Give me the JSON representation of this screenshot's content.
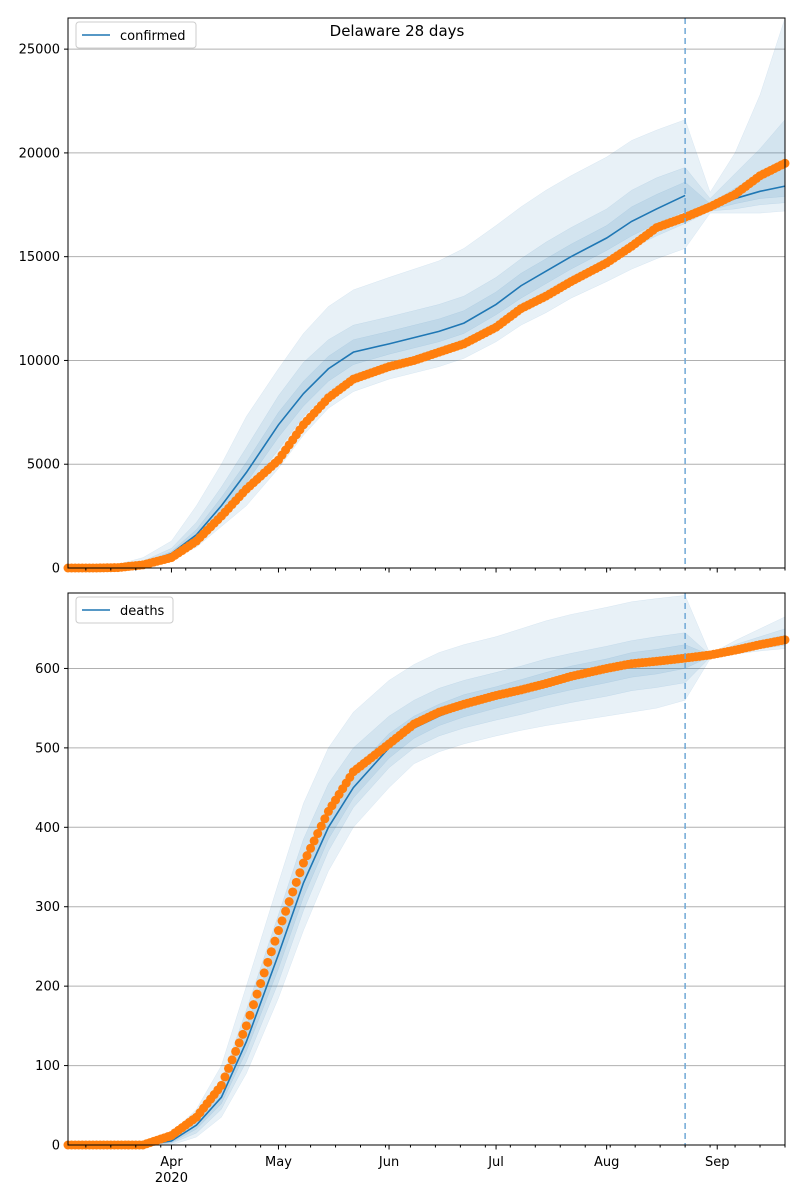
{
  "title": "Delaware 28 days",
  "colors": {
    "model_line": "#1f77b4",
    "observed_points": "#ff7f0e",
    "band": "#1f77b4",
    "forecast_line": "#6fa8d6",
    "grid": "#b0b0b0"
  },
  "chart_data": [
    {
      "type": "line",
      "name": "confirmed-panel",
      "legend": "confirmed",
      "legend_position": "top-left",
      "grid": "y",
      "x_range": [
        "2020-03-03",
        "2020-09-20"
      ],
      "ylim": [
        0,
        26500
      ],
      "yticks": [
        0,
        5000,
        10000,
        15000,
        20000,
        25000
      ],
      "forecast_start": "2020-08-23",
      "model_line": {
        "x": [
          "2020-03-03",
          "2020-03-10",
          "2020-03-17",
          "2020-03-24",
          "2020-04-01",
          "2020-04-08",
          "2020-04-15",
          "2020-04-22",
          "2020-05-01",
          "2020-05-08",
          "2020-05-15",
          "2020-05-22",
          "2020-06-01",
          "2020-06-08",
          "2020-06-15",
          "2020-06-22",
          "2020-07-01",
          "2020-07-08",
          "2020-07-15",
          "2020-07-22",
          "2020-08-01",
          "2020-08-08",
          "2020-08-15",
          "2020-08-23",
          "2020-08-30",
          "2020-09-06",
          "2020-09-13",
          "2020-09-20"
        ],
        "y": [
          0,
          0,
          50,
          200,
          700,
          1600,
          3000,
          4600,
          6900,
          8400,
          9600,
          10400,
          10800,
          11100,
          11400,
          11800,
          12700,
          13600,
          14300,
          15000,
          15900,
          16700,
          17300,
          17950,
          17300,
          17800,
          18150,
          18400
        ]
      },
      "observed": {
        "x": [
          "2020-03-03",
          "2020-03-10",
          "2020-03-17",
          "2020-03-24",
          "2020-04-01",
          "2020-04-08",
          "2020-04-15",
          "2020-04-22",
          "2020-05-01",
          "2020-05-08",
          "2020-05-15",
          "2020-05-22",
          "2020-06-01",
          "2020-06-08",
          "2020-06-15",
          "2020-06-22",
          "2020-07-01",
          "2020-07-08",
          "2020-07-15",
          "2020-07-22",
          "2020-08-01",
          "2020-08-08",
          "2020-08-15",
          "2020-08-23",
          "2020-08-30",
          "2020-09-06",
          "2020-09-13",
          "2020-09-20"
        ],
        "y": [
          0,
          0,
          20,
          150,
          500,
          1300,
          2500,
          3800,
          5200,
          6900,
          8200,
          9100,
          9700,
          10000,
          10400,
          10800,
          11600,
          12500,
          13100,
          13800,
          14700,
          15500,
          16400,
          16900,
          17400,
          18000,
          18900,
          19500
        ]
      },
      "bands": [
        {
          "name": "band-outer",
          "lower": [
            0,
            0,
            0,
            120,
            400,
            1000,
            2000,
            3000,
            4800,
            6400,
            7700,
            8500,
            9100,
            9400,
            9700,
            10100,
            10900,
            11700,
            12300,
            13000,
            13800,
            14400,
            14900,
            15400,
            17100,
            17100,
            17100,
            17200
          ],
          "upper": [
            0,
            20,
            180,
            500,
            1300,
            3000,
            5000,
            7300,
            9600,
            11300,
            12600,
            13400,
            14000,
            14400,
            14800,
            15400,
            16500,
            17400,
            18200,
            18900,
            19800,
            20600,
            21100,
            21600,
            18100,
            20000,
            22800,
            26500
          ]
        },
        {
          "name": "band-mid",
          "lower": [
            0,
            0,
            10,
            160,
            520,
            1200,
            2400,
            3700,
            5700,
            7300,
            8500,
            9300,
            9800,
            10100,
            10400,
            10800,
            11700,
            12500,
            13100,
            13800,
            14700,
            15400,
            16000,
            16600,
            17200,
            17300,
            17500,
            17600
          ],
          "upper": [
            0,
            10,
            100,
            330,
            950,
            2200,
            3900,
            5800,
            8300,
            9900,
            11000,
            11700,
            12100,
            12400,
            12700,
            13100,
            14000,
            14900,
            15700,
            16400,
            17300,
            18200,
            18800,
            19300,
            17800,
            19000,
            20200,
            21600
          ]
        },
        {
          "name": "band-inner",
          "lower": [
            0,
            0,
            30,
            180,
            600,
            1400,
            2700,
            4100,
            6300,
            7800,
            9000,
            9800,
            10300,
            10600,
            10900,
            11300,
            12200,
            13000,
            13700,
            14400,
            15300,
            16000,
            16600,
            17200,
            17250,
            17550,
            17800,
            17900
          ],
          "upper": [
            0,
            5,
            70,
            250,
            800,
            1850,
            3400,
            5100,
            7500,
            9000,
            10200,
            11000,
            11400,
            11700,
            12000,
            12400,
            13300,
            14200,
            14900,
            15600,
            16500,
            17400,
            18000,
            18600,
            17550,
            18300,
            19000,
            19700
          ]
        }
      ],
      "xticks": [
        {
          "date": "2020-04-01",
          "label": "Apr",
          "sublabel": ""
        },
        {
          "date": "2020-05-01",
          "label": "May",
          "sublabel": ""
        },
        {
          "date": "2020-06-01",
          "label": "Jun",
          "sublabel": ""
        },
        {
          "date": "2020-07-01",
          "label": "Jul",
          "sublabel": ""
        },
        {
          "date": "2020-08-01",
          "label": "Aug",
          "sublabel": ""
        },
        {
          "date": "2020-09-01",
          "label": "Sep",
          "sublabel": ""
        }
      ],
      "show_xtick_labels": false
    },
    {
      "type": "line",
      "name": "deaths-panel",
      "legend": "deaths",
      "legend_position": "top-left",
      "grid": "y",
      "x_range": [
        "2020-03-03",
        "2020-09-20"
      ],
      "ylim": [
        0,
        695
      ],
      "yticks": [
        0,
        100,
        200,
        300,
        400,
        500,
        600
      ],
      "forecast_start": "2020-08-23",
      "model_line": {
        "x": [
          "2020-03-03",
          "2020-03-10",
          "2020-03-17",
          "2020-03-24",
          "2020-04-01",
          "2020-04-08",
          "2020-04-15",
          "2020-04-22",
          "2020-05-01",
          "2020-05-08",
          "2020-05-15",
          "2020-05-22",
          "2020-06-01",
          "2020-06-08",
          "2020-06-15",
          "2020-06-22",
          "2020-07-01",
          "2020-07-08",
          "2020-07-15",
          "2020-07-22",
          "2020-08-01",
          "2020-08-08",
          "2020-08-15",
          "2020-08-23",
          "2020-08-30",
          "2020-09-06",
          "2020-09-13",
          "2020-09-20"
        ],
        "y": [
          0,
          0,
          0,
          0,
          5,
          25,
          60,
          130,
          240,
          330,
          400,
          450,
          500,
          525,
          540,
          552,
          563,
          572,
          580,
          588,
          597,
          604,
          608,
          613,
          616,
          624,
          630,
          636
        ]
      },
      "observed": {
        "x": [
          "2020-03-03",
          "2020-03-10",
          "2020-03-17",
          "2020-03-24",
          "2020-04-01",
          "2020-04-08",
          "2020-04-15",
          "2020-04-22",
          "2020-05-01",
          "2020-05-08",
          "2020-05-15",
          "2020-05-22",
          "2020-06-01",
          "2020-06-08",
          "2020-06-15",
          "2020-06-22",
          "2020-07-01",
          "2020-07-08",
          "2020-07-15",
          "2020-07-22",
          "2020-08-01",
          "2020-08-08",
          "2020-08-15",
          "2020-08-23",
          "2020-08-30",
          "2020-09-06",
          "2020-09-13",
          "2020-09-20"
        ],
        "y": [
          0,
          0,
          0,
          0,
          12,
          35,
          75,
          150,
          270,
          355,
          420,
          470,
          505,
          530,
          545,
          555,
          566,
          573,
          581,
          590,
          600,
          606,
          609,
          613,
          617,
          623,
          630,
          636
        ]
      },
      "bands": [
        {
          "name": "band-outer",
          "lower": [
            0,
            0,
            0,
            0,
            0,
            10,
            35,
            90,
            185,
            270,
            345,
            400,
            450,
            480,
            495,
            505,
            515,
            522,
            528,
            533,
            540,
            545,
            550,
            560,
            612,
            618,
            622,
            625
          ],
          "upper": [
            0,
            0,
            0,
            5,
            15,
            45,
            100,
            200,
            330,
            430,
            500,
            545,
            585,
            605,
            620,
            630,
            640,
            650,
            660,
            668,
            677,
            684,
            688,
            692,
            618,
            635,
            650,
            665
          ]
        },
        {
          "name": "band-mid",
          "lower": [
            0,
            0,
            0,
            0,
            2,
            15,
            45,
            105,
            205,
            295,
            370,
            425,
            475,
            500,
            515,
            525,
            535,
            542,
            550,
            557,
            565,
            572,
            576,
            582,
            614,
            620,
            625,
            629
          ],
          "upper": [
            0,
            0,
            0,
            2,
            10,
            35,
            80,
            170,
            290,
            385,
            455,
            500,
            540,
            560,
            575,
            585,
            595,
            603,
            612,
            619,
            628,
            635,
            640,
            645,
            617,
            630,
            640,
            650
          ]
        },
        {
          "name": "band-inner",
          "lower": [
            0,
            0,
            0,
            0,
            3,
            20,
            52,
            118,
            222,
            312,
            385,
            437,
            487,
            512,
            528,
            539,
            550,
            558,
            566,
            573,
            582,
            589,
            593,
            600,
            615,
            622,
            628,
            633
          ],
          "upper": [
            0,
            0,
            0,
            1,
            7,
            30,
            68,
            150,
            262,
            355,
            425,
            470,
            518,
            540,
            555,
            567,
            577,
            586,
            595,
            603,
            612,
            620,
            624,
            630,
            617,
            627,
            635,
            642
          ]
        }
      ],
      "xticks": [
        {
          "date": "2020-04-01",
          "label": "Apr",
          "sublabel": "2020"
        },
        {
          "date": "2020-05-01",
          "label": "May",
          "sublabel": ""
        },
        {
          "date": "2020-06-01",
          "label": "Jun",
          "sublabel": ""
        },
        {
          "date": "2020-07-01",
          "label": "Jul",
          "sublabel": ""
        },
        {
          "date": "2020-08-01",
          "label": "Aug",
          "sublabel": ""
        },
        {
          "date": "2020-09-01",
          "label": "Sep",
          "sublabel": ""
        }
      ],
      "show_xtick_labels": true
    }
  ]
}
